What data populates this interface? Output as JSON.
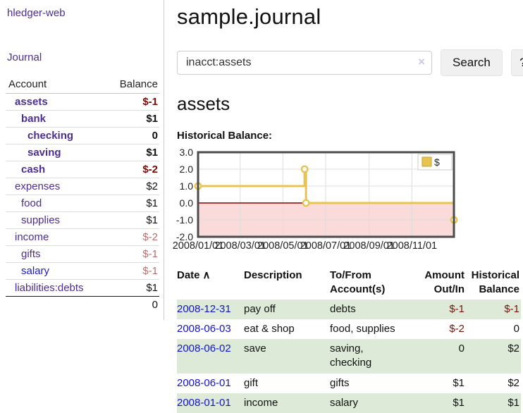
{
  "app": {
    "title": "hledger-web"
  },
  "sidebar": {
    "journal_link": "Journal",
    "accounts_table": {
      "account_header": "Account",
      "balance_header": "Balance",
      "rows": [
        {
          "name": "assets",
          "balance": "$-1",
          "level": 1,
          "bold": true,
          "balance_tone": "neg-strong",
          "link_tone": "purple"
        },
        {
          "name": "bank",
          "balance": "$1",
          "level": 2,
          "bold": true,
          "balance_tone": "plain",
          "link_tone": "purple"
        },
        {
          "name": "checking",
          "balance": "0",
          "level": 3,
          "bold": true,
          "balance_tone": "plain",
          "link_tone": "purple"
        },
        {
          "name": "saving",
          "balance": "$1",
          "level": 3,
          "bold": true,
          "balance_tone": "plain",
          "link_tone": "purple"
        },
        {
          "name": "cash",
          "balance": "$-2",
          "level": 2,
          "bold": true,
          "balance_tone": "neg-strong",
          "link_tone": "purple"
        },
        {
          "name": "expenses",
          "balance": "$2",
          "level": 1,
          "bold": false,
          "balance_tone": "plain",
          "link_tone": "purple"
        },
        {
          "name": "food",
          "balance": "$1",
          "level": 2,
          "bold": false,
          "balance_tone": "plain",
          "link_tone": "purple"
        },
        {
          "name": "supplies",
          "balance": "$1",
          "level": 2,
          "bold": false,
          "balance_tone": "plain",
          "link_tone": "purple"
        },
        {
          "name": "income",
          "balance": "$-2",
          "level": 1,
          "bold": false,
          "balance_tone": "neg-muted",
          "link_tone": "purple"
        },
        {
          "name": "gifts",
          "balance": "$-1",
          "level": 2,
          "bold": false,
          "balance_tone": "neg-muted",
          "link_tone": "purple"
        },
        {
          "name": "salary",
          "balance": "$-1",
          "level": 2,
          "bold": false,
          "balance_tone": "neg-muted",
          "link_tone": "blue"
        },
        {
          "name": "liabilities:debts",
          "balance": "$1",
          "level": 1,
          "bold": false,
          "balance_tone": "plain",
          "link_tone": "purple"
        }
      ],
      "total": "0"
    }
  },
  "main": {
    "title": "sample.journal",
    "search": {
      "value": "inacct:assets",
      "clear_icon": "×",
      "search_button": "Search",
      "help_button": "?"
    },
    "account_heading": "assets",
    "chart_label": "Historical Balance:"
  },
  "chart_data": {
    "type": "line",
    "title": "Historical Balance",
    "step": true,
    "series": [
      {
        "name": "$",
        "points": [
          {
            "date": "2008-01-01",
            "value": 1
          },
          {
            "date": "2008-06-01",
            "value": 2
          },
          {
            "date": "2008-06-03",
            "value": 0
          },
          {
            "date": "2008-12-31",
            "value": -1
          }
        ]
      }
    ],
    "x_start": "2008-01-01",
    "x_span_days": 365,
    "x_ticks": [
      "2008/01/01",
      "2008/03/01",
      "2008/05/01",
      "2008/07/01",
      "2008/09/01",
      "2008/11/01"
    ],
    "y_ticks": [
      "3.0",
      "2.0",
      "1.0",
      "0.0",
      "-1.0",
      "-2.0"
    ],
    "ylim": [
      -2,
      3
    ],
    "grid": true,
    "legend_position": "top-right",
    "line_color": "#e8c44f",
    "marker_fill": "#ffffff",
    "negative_region_color": "#fbdada",
    "zero_line_color": "#8b0000",
    "border_color": "#4b4b4b"
  },
  "register": {
    "headers": [
      "Date",
      "Description",
      "To/From Account(s)",
      "Amount Out/In",
      "Historical Balance"
    ],
    "sort_indicator": "∧",
    "rows": [
      {
        "date": "2008-12-31",
        "description": "pay off",
        "accounts": "debts",
        "amount": "$-1",
        "amount_negative": true,
        "balance": "$-1",
        "balance_negative": true
      },
      {
        "date": "2008-06-03",
        "description": "eat & shop",
        "accounts": "food, supplies",
        "amount": "$-2",
        "amount_negative": true,
        "balance": "0",
        "balance_negative": false
      },
      {
        "date": "2008-06-02",
        "description": "save",
        "accounts": "saving, checking",
        "amount": "0",
        "amount_negative": false,
        "balance": "$2",
        "balance_negative": false
      },
      {
        "date": "2008-06-01",
        "description": "gift",
        "accounts": "gifts",
        "amount": "$1",
        "amount_negative": false,
        "balance": "$2",
        "balance_negative": false
      },
      {
        "date": "2008-01-01",
        "description": "income",
        "accounts": "salary",
        "amount": "$1",
        "amount_negative": false,
        "balance": "$1",
        "balance_negative": false
      }
    ]
  },
  "colors": {
    "link_purple": "#4b2e91",
    "link_blue": "#1414cc",
    "negative_strong": "#7c0a02",
    "negative_muted": "#b4706f",
    "row_shade_green": "#dcead7",
    "chart_line_gold": "#e8c44f",
    "chart_negative_pink": "#fbdada",
    "chart_zero_line": "#8b0000"
  }
}
